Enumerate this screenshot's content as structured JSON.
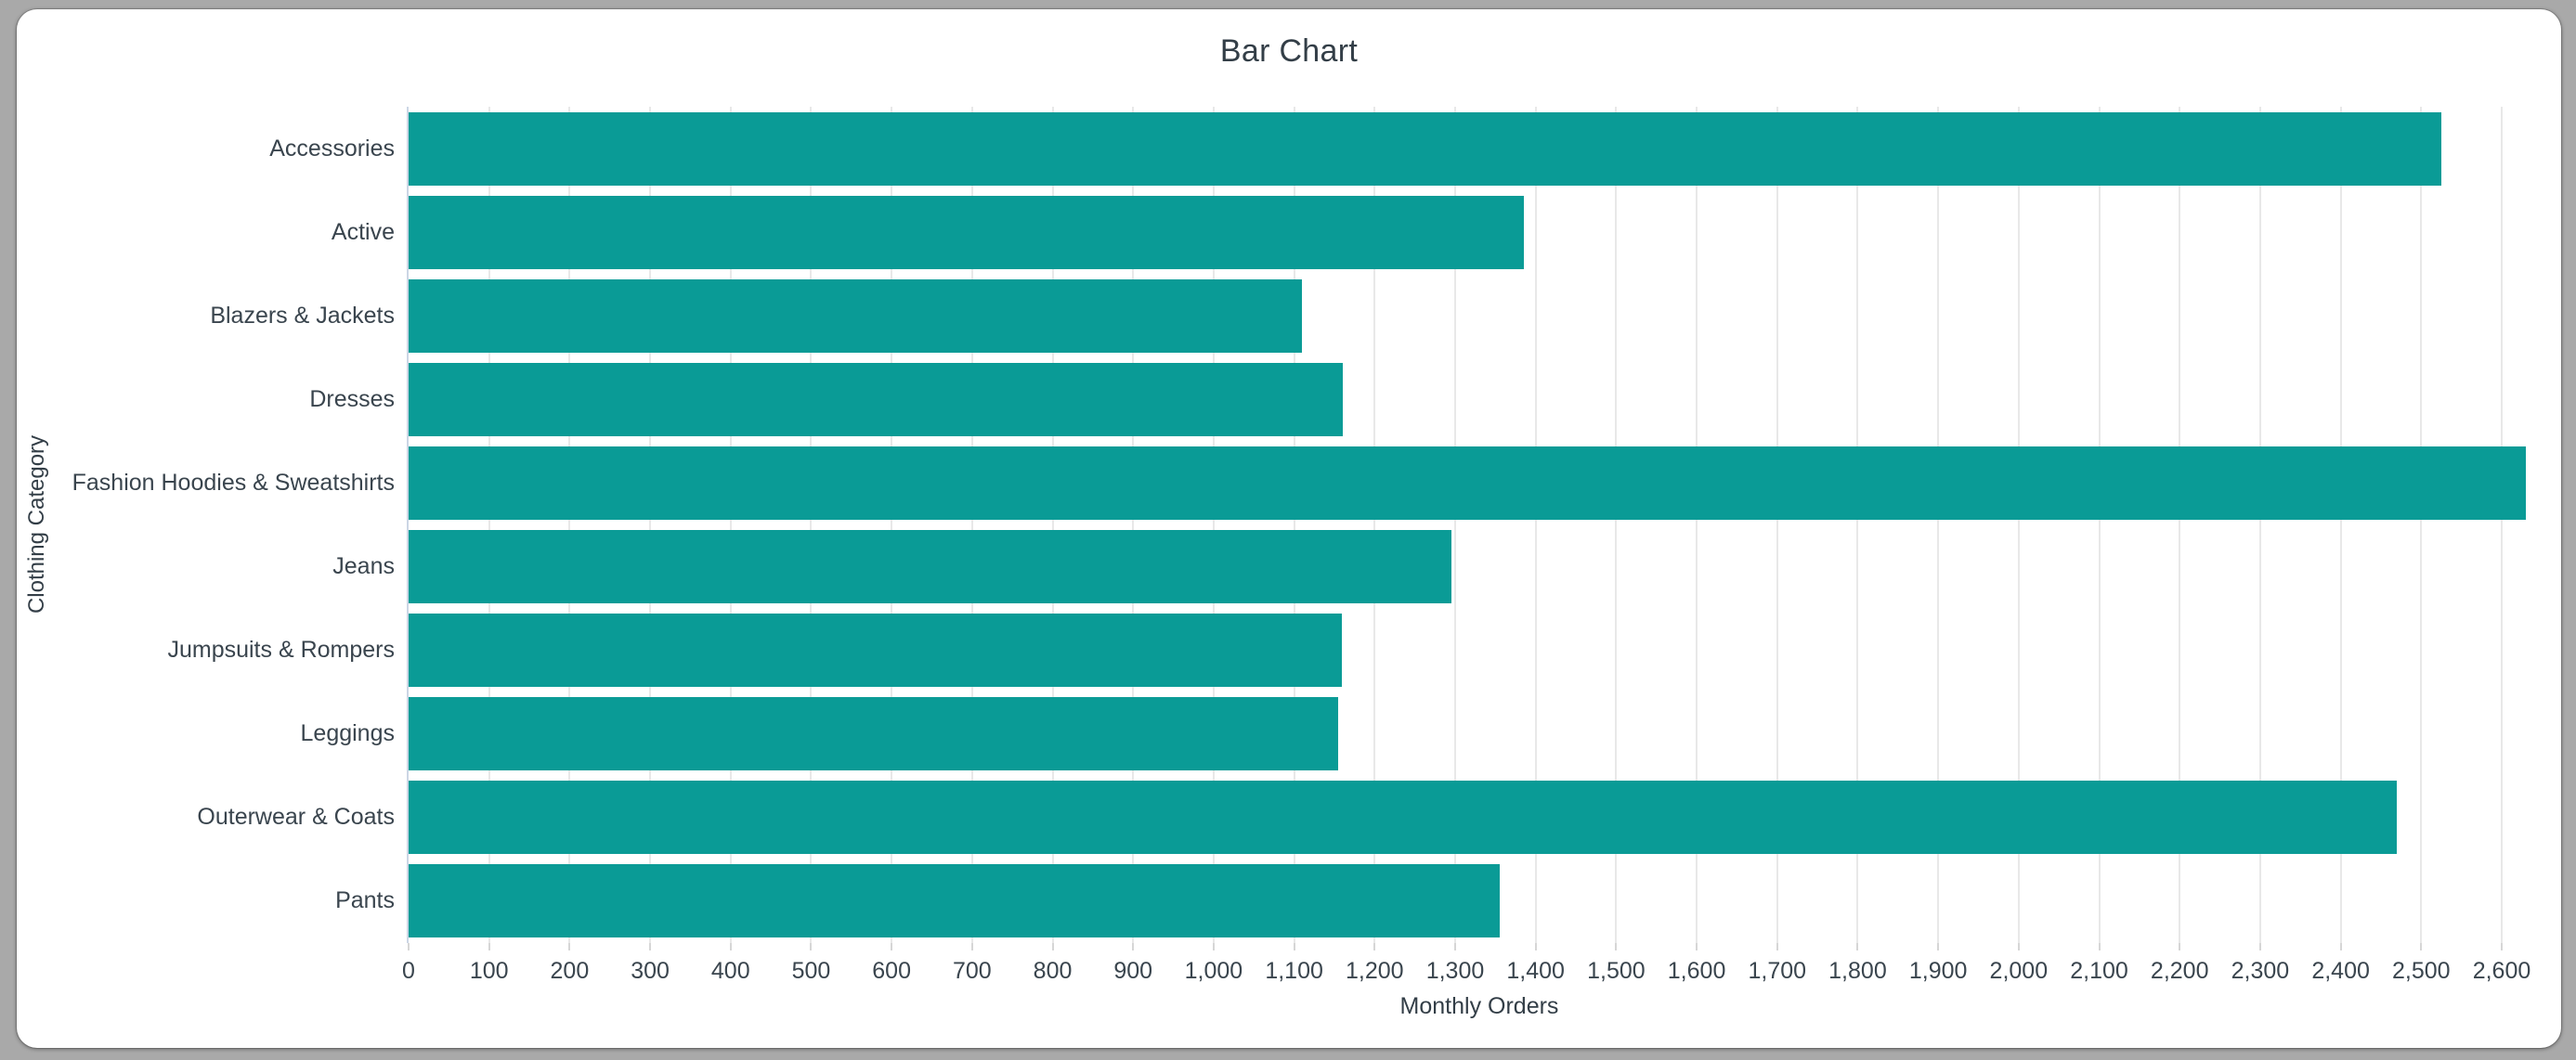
{
  "window": {
    "frame_color": "#a9a9a9",
    "card_color": "#ffffff"
  },
  "chart_data": {
    "type": "bar",
    "orientation": "horizontal",
    "title": "Bar Chart",
    "xlabel": "Monthly Orders",
    "ylabel": "Clothing Category",
    "categories": [
      "Accessories",
      "Active",
      "Blazers & Jackets",
      "Dresses",
      "Fashion Hoodies & Sweatshirts",
      "Jeans",
      "Jumpsuits & Rompers",
      "Leggings",
      "Outerwear & Coats",
      "Pants"
    ],
    "values": [
      2525,
      1385,
      1110,
      1160,
      2630,
      1295,
      1159,
      1155,
      2470,
      1355
    ],
    "xlim": [
      0,
      2660
    ],
    "x_tick_min": 0,
    "x_tick_max": 2600,
    "x_tick_step": 100,
    "x_tick_format": "comma-thousands",
    "grid": true,
    "legend": false,
    "bar_color": "#0a9b96",
    "gridline_color": "#e8e8e8",
    "axis_line_color": "#ccd6e5",
    "text_color": "#333e47"
  }
}
